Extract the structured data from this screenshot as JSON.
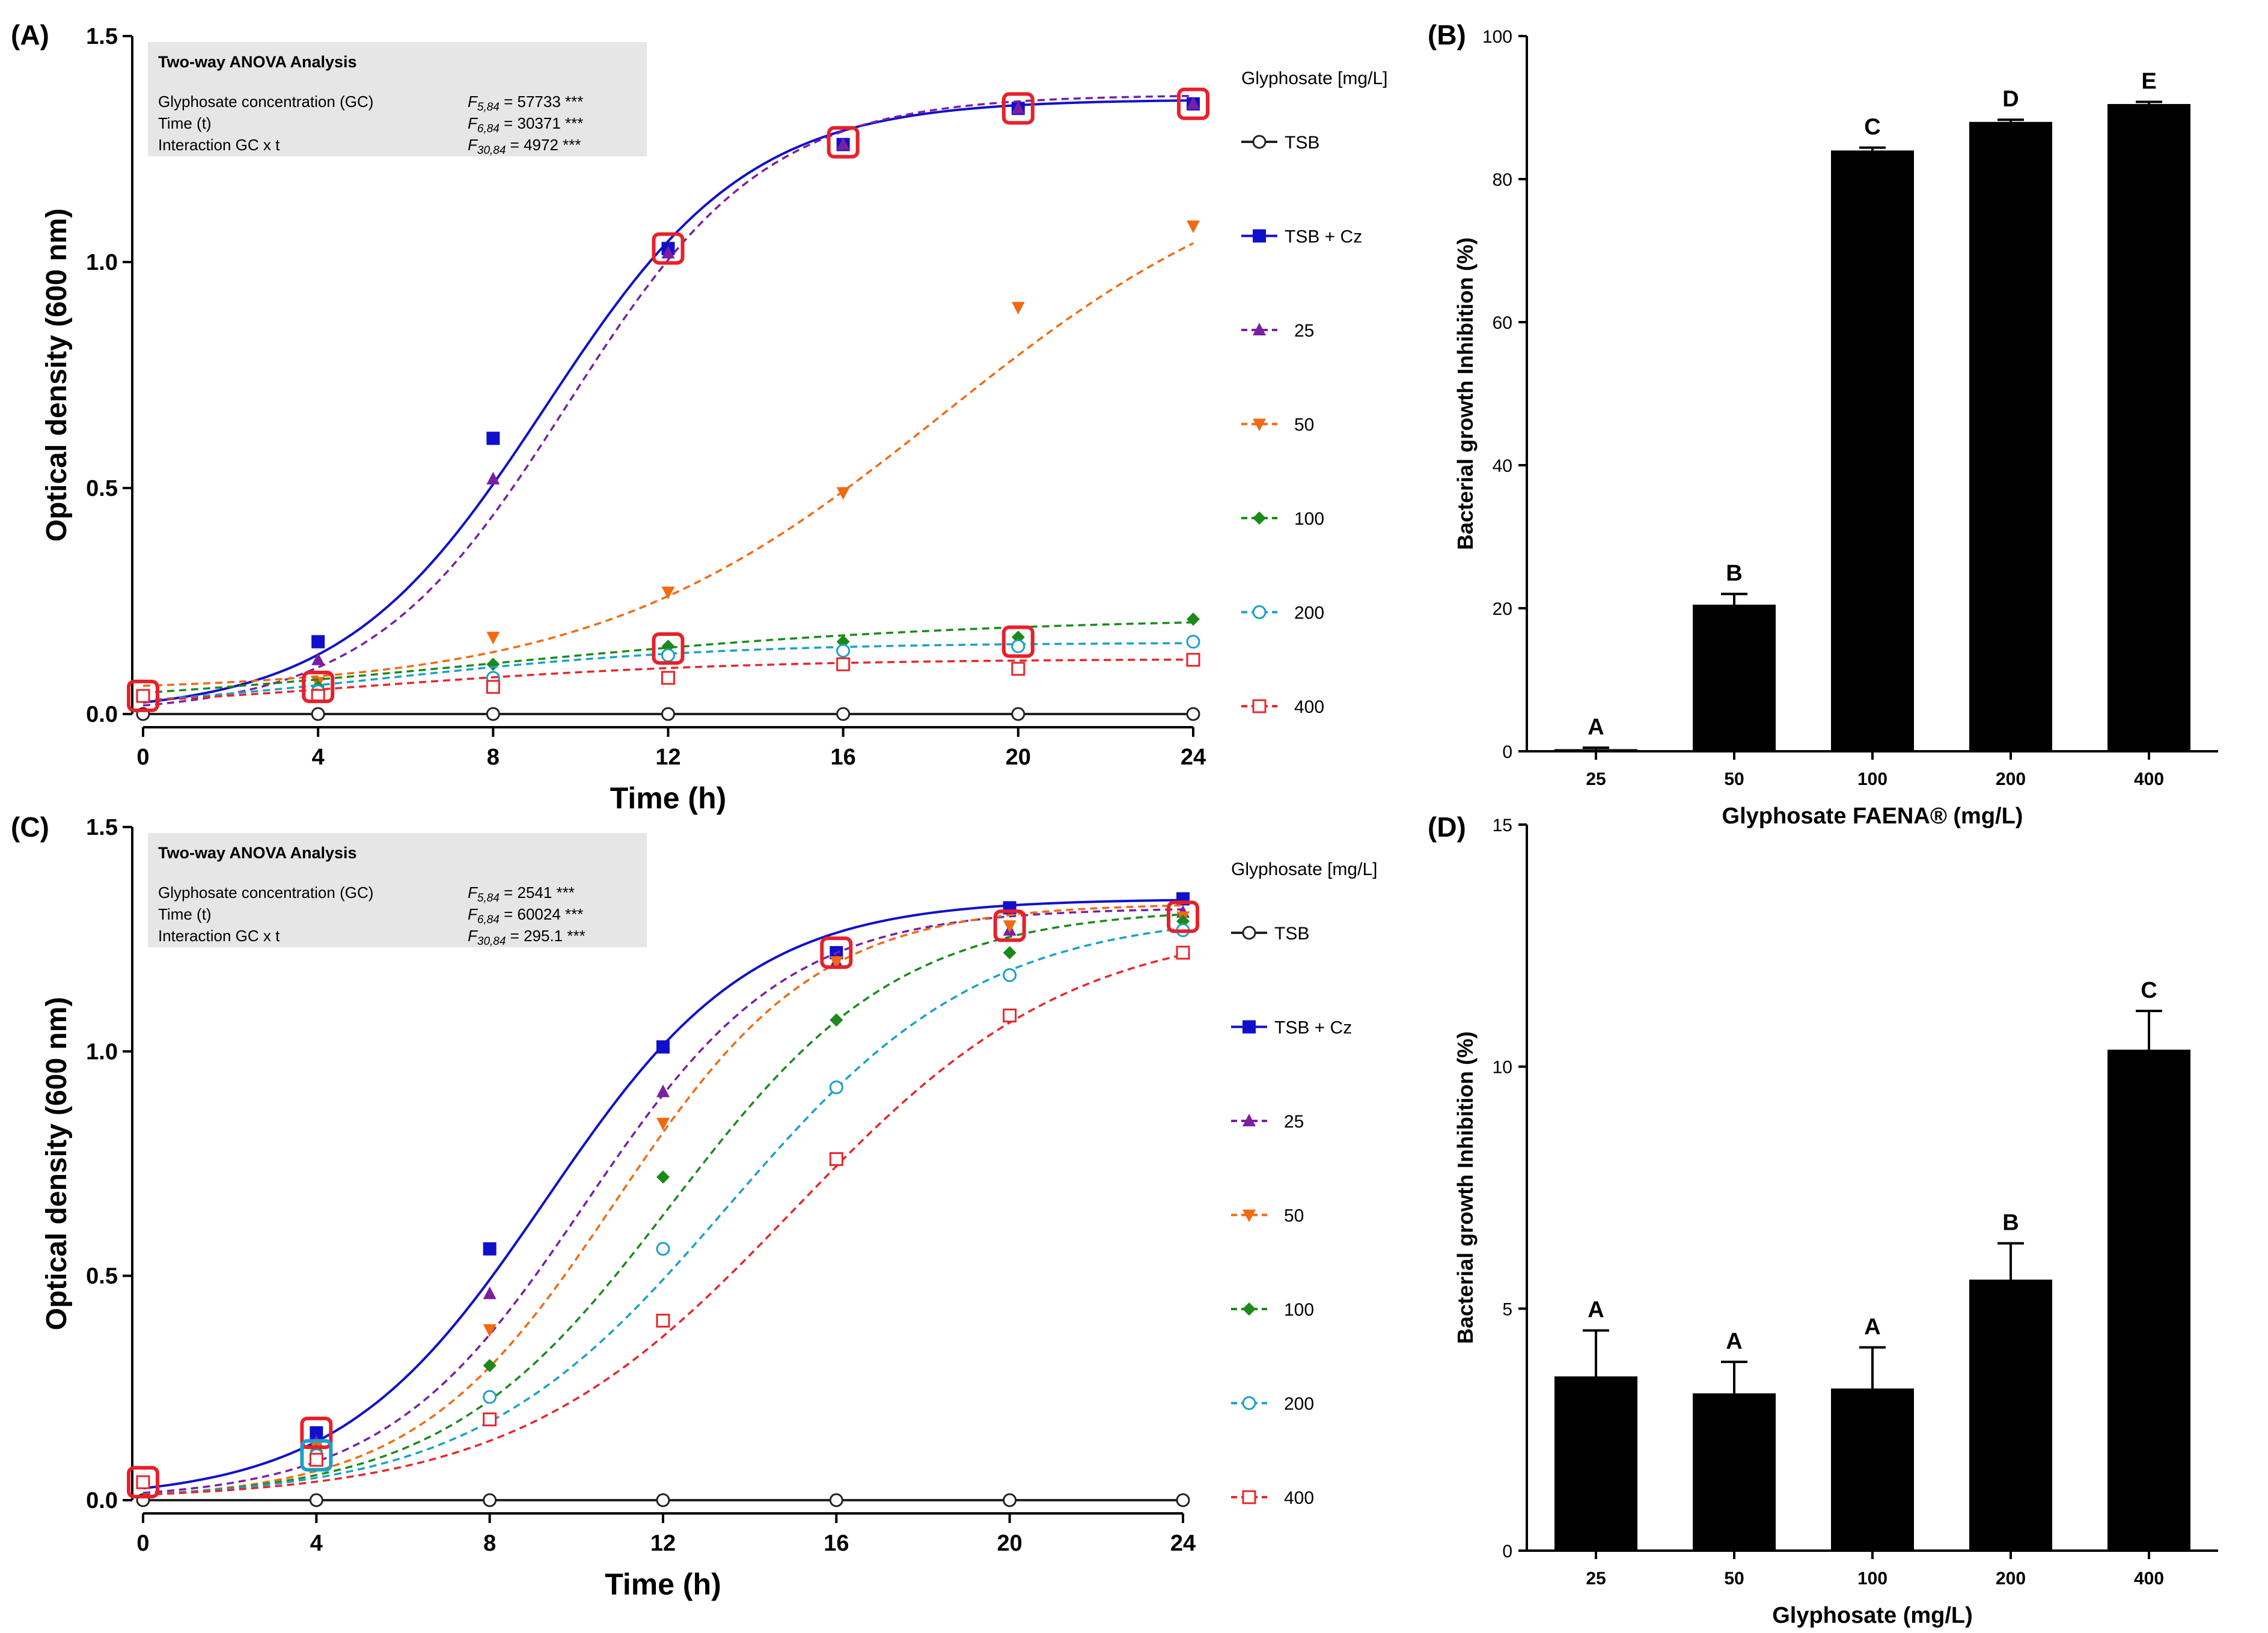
{
  "figure": {
    "panels": {
      "A": {
        "label": "(A)"
      },
      "B": {
        "label": "(B)"
      },
      "C": {
        "label": "(C)"
      },
      "D": {
        "label": "(D)"
      }
    }
  },
  "colors": {
    "TSB": "#222222",
    "TSB + Cz": "#1010cc",
    "25": "#7a1fa2",
    "50": "#f26a10",
    "100": "#1a8a1a",
    "200": "#1aa0c8",
    "400": "#e8262a",
    "highlight": "#e8202a",
    "anova_bg": "#e6e6e6",
    "bar": "#000000"
  },
  "chart_data": [
    {
      "id": "A",
      "type": "line",
      "title": "",
      "xlabel": "Time (h)",
      "ylabel": "Optical density (600 nm)",
      "xlim": [
        0,
        24
      ],
      "ylim": [
        0,
        1.5
      ],
      "x_ticks": [
        0,
        4,
        8,
        12,
        16,
        20,
        24
      ],
      "y_ticks": [
        0.0,
        0.5,
        1.0,
        1.5
      ],
      "y_tick_labels": [
        "0.0",
        "0.5",
        "1.0",
        "1.5"
      ],
      "legend_title": "Glyphosate [mg/L]",
      "legend_position": "right",
      "anova": {
        "title": "Two-way ANOVA Analysis",
        "rows": [
          {
            "label": "Glyphosate concentration (GC)",
            "F": "F",
            "df": "5,84",
            "value": "= 57733 ***"
          },
          {
            "label": "Time (t)",
            "F": "F",
            "df": "6,84",
            "value": "= 30371 ***"
          },
          {
            "label": "Interaction GC x t",
            "F": "F",
            "df": "30,84",
            "value": "=   4972 ***"
          }
        ]
      },
      "x": [
        0,
        4,
        8,
        12,
        16,
        20,
        24
      ],
      "series": [
        {
          "name": "TSB",
          "marker": "circle-open",
          "style": "solid",
          "values": [
            0.0,
            0.0,
            0.0,
            0.0,
            0.0,
            0.0,
            0.0
          ],
          "fit": {
            "bottom": 0.0,
            "top": 0.0,
            "x50": 12,
            "k": 0.3
          }
        },
        {
          "name": "TSB + Cz",
          "marker": "square",
          "style": "solid",
          "values": [
            0.04,
            0.16,
            0.61,
            1.03,
            1.26,
            1.34,
            1.35
          ],
          "fit": {
            "bottom": 0.0,
            "top": 1.36,
            "x50": 9.2,
            "k": 0.43
          }
        },
        {
          "name": "25",
          "marker": "triangle-up",
          "style": "dashed",
          "values": [
            0.04,
            0.12,
            0.52,
            1.02,
            1.26,
            1.34,
            1.35
          ],
          "fit": {
            "bottom": 0.0,
            "top": 1.37,
            "x50": 9.7,
            "k": 0.44
          }
        },
        {
          "name": "50",
          "marker": "triangle-down",
          "style": "dashed",
          "values": [
            0.04,
            0.07,
            0.17,
            0.27,
            0.49,
            0.9,
            1.08
          ],
          "fit": {
            "bottom": 0.05,
            "top": 1.28,
            "x50": 18.3,
            "k": 0.25
          }
        },
        {
          "name": "100",
          "marker": "diamond",
          "style": "dashed",
          "values": [
            0.04,
            0.06,
            0.11,
            0.15,
            0.16,
            0.17,
            0.21
          ],
          "fit": {
            "bottom": 0.0,
            "top": 0.215,
            "x50": 7.5,
            "k": 0.17
          }
        },
        {
          "name": "200",
          "marker": "circle-open",
          "style": "dashed",
          "values": [
            0.04,
            0.05,
            0.08,
            0.13,
            0.14,
            0.15,
            0.16
          ],
          "fit": {
            "bottom": 0.0,
            "top": 0.158,
            "x50": 5.5,
            "k": 0.26
          }
        },
        {
          "name": "400",
          "marker": "square-open",
          "style": "dashed",
          "values": [
            0.04,
            0.04,
            0.06,
            0.08,
            0.11,
            0.1,
            0.12
          ],
          "fit": {
            "bottom": 0.0,
            "top": 0.122,
            "x50": 5.0,
            "k": 0.23
          }
        }
      ],
      "highlights": [
        {
          "x": 0,
          "y": 0.04
        },
        {
          "x": 4,
          "y": 0.06
        },
        {
          "x": 12,
          "y": 0.145
        },
        {
          "x": 12,
          "y": 1.03
        },
        {
          "x": 16,
          "y": 1.265
        },
        {
          "x": 20,
          "y": 1.34
        },
        {
          "x": 20,
          "y": 0.16
        },
        {
          "x": 24,
          "y": 1.35
        }
      ]
    },
    {
      "id": "B",
      "type": "bar",
      "title": "",
      "xlabel": "Glyphosate FAENA® (mg/L)",
      "ylabel": "Bacterial growth Inhibition (%)",
      "ylim": [
        0,
        100
      ],
      "y_ticks": [
        0,
        20,
        40,
        60,
        80,
        100
      ],
      "categories": [
        "25",
        "50",
        "100",
        "200",
        "400"
      ],
      "values": [
        0.3,
        20.5,
        84.0,
        88.0,
        90.5
      ],
      "errors": [
        0.2,
        1.5,
        0.4,
        0.3,
        0.3
      ],
      "group_labels": [
        "A",
        "B",
        "C",
        "D",
        "E"
      ]
    },
    {
      "id": "C",
      "type": "line",
      "title": "",
      "xlabel": "Time (h)",
      "ylabel": "Optical density (600 nm)",
      "xlim": [
        0,
        24
      ],
      "ylim": [
        0,
        1.5
      ],
      "x_ticks": [
        0,
        4,
        8,
        12,
        16,
        20,
        24
      ],
      "y_ticks": [
        0.0,
        0.5,
        1.0,
        1.5
      ],
      "y_tick_labels": [
        "0.0",
        "0.5",
        "1.0",
        "1.5"
      ],
      "legend_title": "Glyphosate [mg/L]",
      "legend_position": "right",
      "anova": {
        "title": "Two-way ANOVA Analysis",
        "rows": [
          {
            "label": "Glyphosate concentration (GC)",
            "F": "F",
            "df": "5,84",
            "value": "=   2541 ***"
          },
          {
            "label": "Time (t)",
            "F": "F",
            "df": "6,84",
            "value": "= 60024 ***"
          },
          {
            "label": "Interaction GC x t",
            "F": "F",
            "df": "30,84",
            "value": "=  295.1 ***"
          }
        ]
      },
      "x": [
        0,
        4,
        8,
        12,
        16,
        20,
        24
      ],
      "series": [
        {
          "name": "TSB",
          "marker": "circle-open",
          "style": "solid",
          "values": [
            0.0,
            0.0,
            0.0,
            0.0,
            0.0,
            0.0,
            0.0
          ],
          "fit": {
            "bottom": 0.0,
            "top": 0.0,
            "x50": 12,
            "k": 0.3
          }
        },
        {
          "name": "TSB + Cz",
          "marker": "square",
          "style": "solid",
          "values": [
            0.04,
            0.15,
            0.56,
            1.01,
            1.22,
            1.32,
            1.34
          ],
          "fit": {
            "bottom": 0.0,
            "top": 1.34,
            "x50": 9.3,
            "k": 0.42
          }
        },
        {
          "name": "25",
          "marker": "triangle-up",
          "style": "dashed",
          "values": [
            0.04,
            0.13,
            0.46,
            0.91,
            1.2,
            1.27,
            1.31
          ],
          "fit": {
            "bottom": 0.0,
            "top": 1.32,
            "x50": 10.2,
            "k": 0.43
          }
        },
        {
          "name": "50",
          "marker": "triangle-down",
          "style": "dashed",
          "values": [
            0.04,
            0.12,
            0.38,
            0.84,
            1.2,
            1.28,
            1.3
          ],
          "fit": {
            "bottom": 0.0,
            "top": 1.33,
            "x50": 10.9,
            "k": 0.43
          }
        },
        {
          "name": "100",
          "marker": "diamond",
          "style": "dashed",
          "values": [
            0.04,
            0.11,
            0.3,
            0.72,
            1.07,
            1.22,
            1.29
          ],
          "fit": {
            "bottom": 0.0,
            "top": 1.32,
            "x50": 12.2,
            "k": 0.38
          }
        },
        {
          "name": "200",
          "marker": "circle-open",
          "style": "dashed",
          "values": [
            0.04,
            0.1,
            0.23,
            0.56,
            0.92,
            1.17,
            1.27
          ],
          "fit": {
            "bottom": 0.0,
            "top": 1.31,
            "x50": 13.5,
            "k": 0.34
          }
        },
        {
          "name": "400",
          "marker": "square-open",
          "style": "dashed",
          "values": [
            0.04,
            0.09,
            0.18,
            0.4,
            0.76,
            1.08,
            1.22
          ],
          "fit": {
            "bottom": 0.0,
            "top": 1.29,
            "x50": 15.0,
            "k": 0.31
          }
        }
      ],
      "highlights": [
        {
          "x": 0,
          "y": 0.04,
          "color": "#e8202a"
        },
        {
          "x": 4,
          "y": 0.15,
          "color": "#e8202a"
        },
        {
          "x": 4,
          "y": 0.1,
          "color": "#1aa0c8"
        },
        {
          "x": 16,
          "y": 1.22,
          "color": "#e8202a"
        },
        {
          "x": 20,
          "y": 1.28,
          "color": "#e8202a"
        },
        {
          "x": 24,
          "y": 1.3,
          "color": "#e8202a"
        }
      ]
    },
    {
      "id": "D",
      "type": "bar",
      "title": "",
      "xlabel": "Glyphosate (mg/L)",
      "ylabel": "Bacterial growth Inhibition (%)",
      "ylim": [
        0,
        15
      ],
      "y_ticks": [
        0,
        5,
        10,
        15
      ],
      "categories": [
        "25",
        "50",
        "100",
        "200",
        "400"
      ],
      "values": [
        3.6,
        3.25,
        3.35,
        5.6,
        10.35
      ],
      "errors": [
        0.95,
        0.65,
        0.85,
        0.75,
        0.8
      ],
      "group_labels": [
        "A",
        "A",
        "A",
        "B",
        "C"
      ]
    }
  ]
}
